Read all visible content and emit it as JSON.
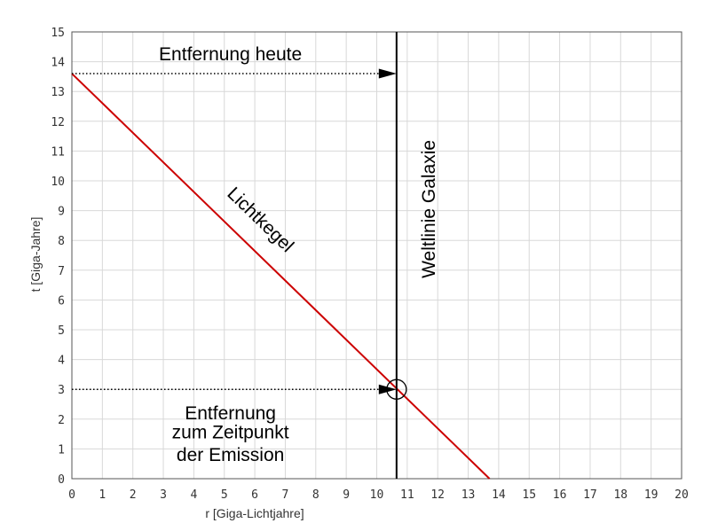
{
  "chart_data": {
    "type": "line",
    "xlabel": "r [Giga-Lichtjahre]",
    "ylabel": "t [Giga-Jahre]",
    "xlim": [
      0,
      20
    ],
    "ylim": [
      0,
      15
    ],
    "xticks": [
      0,
      1,
      2,
      3,
      4,
      5,
      6,
      7,
      8,
      9,
      10,
      11,
      12,
      13,
      14,
      15,
      16,
      17,
      18,
      19,
      20
    ],
    "yticks": [
      0,
      1,
      2,
      3,
      4,
      5,
      6,
      7,
      8,
      9,
      10,
      11,
      12,
      13,
      14,
      15
    ],
    "grid": true,
    "series": [
      {
        "name": "Lichtkegel",
        "color": "#cc0000",
        "points": [
          [
            0,
            13.6
          ],
          [
            13.7,
            0
          ]
        ]
      },
      {
        "name": "Weltlinie Galaxie",
        "color": "#000000",
        "points": [
          [
            10.65,
            0
          ],
          [
            10.65,
            15
          ]
        ]
      }
    ],
    "arrows": [
      {
        "from": [
          0,
          13.6
        ],
        "to": [
          10.65,
          13.6
        ],
        "style": "dotted"
      },
      {
        "from": [
          0,
          3.0
        ],
        "to": [
          10.65,
          3.0
        ],
        "style": "dotted"
      }
    ],
    "marker": {
      "shape": "circle",
      "at": [
        10.65,
        3.0
      ]
    },
    "annotations": [
      {
        "text": "Entfernung heute",
        "x": 5.2,
        "y": 14.05
      },
      {
        "text": "Entfernung",
        "x": 5.2,
        "y": 2.0
      },
      {
        "text": "zum Zeitpunkt",
        "x": 5.2,
        "y": 1.35
      },
      {
        "text": "der Emission",
        "x": 5.2,
        "y": 0.6
      }
    ]
  }
}
